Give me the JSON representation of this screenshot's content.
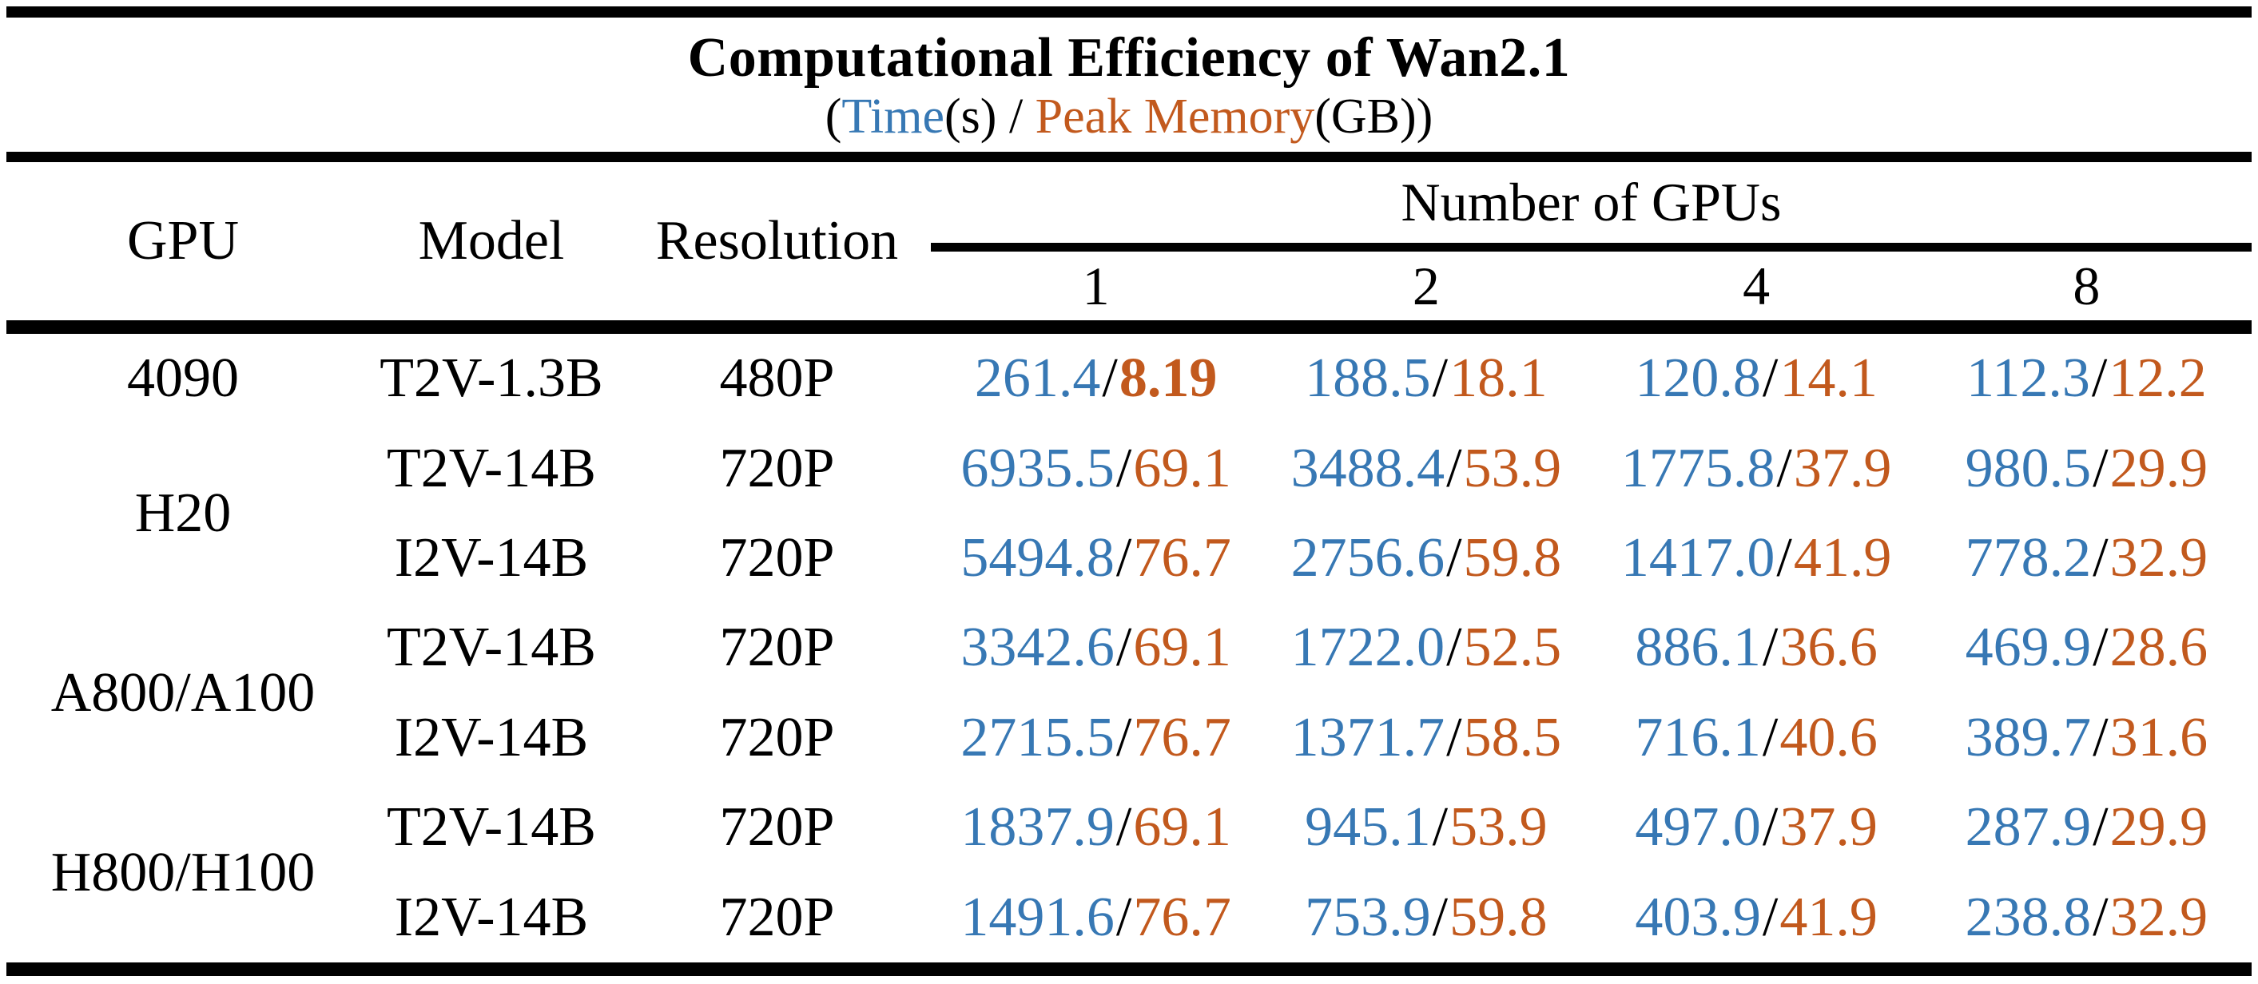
{
  "table": {
    "title": "Computational Efficiency of Wan2.1",
    "subtitle": {
      "prefix": "(",
      "time_label": "Time",
      "time_suffix": "(s)",
      "separator": " / ",
      "memory_label": "Peak Memory",
      "memory_suffix": "(GB))"
    },
    "colors": {
      "time": "#3778B4",
      "memory": "#C2591D"
    },
    "columns": {
      "gpu": "GPU",
      "model": "Model",
      "resolution": "Resolution",
      "gpus_group": "Number of GPUs",
      "gpu_counts": [
        "1",
        "2",
        "4",
        "8"
      ]
    },
    "groups": [
      {
        "gpu": "4090",
        "rows": [
          {
            "model": "T2V-1.3B",
            "resolution": "480P",
            "cells": [
              {
                "time": "261.4",
                "memory": "8.19",
                "memory_bold": true
              },
              {
                "time": "188.5",
                "memory": "18.1"
              },
              {
                "time": "120.8",
                "memory": "14.1"
              },
              {
                "time": "112.3",
                "memory": "12.2"
              }
            ]
          }
        ]
      },
      {
        "gpu": "H20",
        "rows": [
          {
            "model": "T2V-14B",
            "resolution": "720P",
            "cells": [
              {
                "time": "6935.5",
                "memory": "69.1"
              },
              {
                "time": "3488.4",
                "memory": "53.9"
              },
              {
                "time": "1775.8",
                "memory": "37.9"
              },
              {
                "time": "980.5",
                "memory": "29.9"
              }
            ]
          },
          {
            "model": "I2V-14B",
            "resolution": "720P",
            "cells": [
              {
                "time": "5494.8",
                "memory": "76.7"
              },
              {
                "time": "2756.6",
                "memory": "59.8"
              },
              {
                "time": "1417.0",
                "memory": "41.9"
              },
              {
                "time": "778.2",
                "memory": "32.9"
              }
            ]
          }
        ]
      },
      {
        "gpu": "A800/A100",
        "rows": [
          {
            "model": "T2V-14B",
            "resolution": "720P",
            "cells": [
              {
                "time": "3342.6",
                "memory": "69.1"
              },
              {
                "time": "1722.0",
                "memory": "52.5"
              },
              {
                "time": "886.1",
                "memory": "36.6"
              },
              {
                "time": "469.9",
                "memory": "28.6"
              }
            ]
          },
          {
            "model": "I2V-14B",
            "resolution": "720P",
            "cells": [
              {
                "time": "2715.5",
                "memory": "76.7"
              },
              {
                "time": "1371.7",
                "memory": "58.5"
              },
              {
                "time": "716.1",
                "memory": "40.6"
              },
              {
                "time": "389.7",
                "memory": "31.6"
              }
            ]
          }
        ]
      },
      {
        "gpu": "H800/H100",
        "rows": [
          {
            "model": "T2V-14B",
            "resolution": "720P",
            "cells": [
              {
                "time": "1837.9",
                "memory": "69.1"
              },
              {
                "time": "945.1",
                "memory": "53.9"
              },
              {
                "time": "497.0",
                "memory": "37.9"
              },
              {
                "time": "287.9",
                "memory": "29.9"
              }
            ]
          },
          {
            "model": "I2V-14B",
            "resolution": "720P",
            "cells": [
              {
                "time": "1491.6",
                "memory": "76.7"
              },
              {
                "time": "753.9",
                "memory": "59.8"
              },
              {
                "time": "403.9",
                "memory": "41.9"
              },
              {
                "time": "238.8",
                "memory": "32.9"
              }
            ]
          }
        ]
      }
    ]
  },
  "chart_data": {
    "type": "table",
    "title": "Computational Efficiency of Wan2.1",
    "subtitle": "(Time(s) / Peak Memory(GB))",
    "units": {
      "time": "s",
      "peak_memory": "GB"
    },
    "columns": [
      "GPU",
      "Model",
      "Resolution",
      "1 GPU",
      "2 GPUs",
      "4 GPUs",
      "8 GPUs"
    ],
    "rows": [
      {
        "gpu": "4090",
        "model": "T2V-1.3B",
        "resolution": "480P",
        "time": {
          "1": 261.4,
          "2": 188.5,
          "4": 120.8,
          "8": 112.3
        },
        "peak_memory": {
          "1": 8.19,
          "2": 18.1,
          "4": 14.1,
          "8": 12.2
        }
      },
      {
        "gpu": "H20",
        "model": "T2V-14B",
        "resolution": "720P",
        "time": {
          "1": 6935.5,
          "2": 3488.4,
          "4": 1775.8,
          "8": 980.5
        },
        "peak_memory": {
          "1": 69.1,
          "2": 53.9,
          "4": 37.9,
          "8": 29.9
        }
      },
      {
        "gpu": "H20",
        "model": "I2V-14B",
        "resolution": "720P",
        "time": {
          "1": 5494.8,
          "2": 2756.6,
          "4": 1417.0,
          "8": 778.2
        },
        "peak_memory": {
          "1": 76.7,
          "2": 59.8,
          "4": 41.9,
          "8": 32.9
        }
      },
      {
        "gpu": "A800/A100",
        "model": "T2V-14B",
        "resolution": "720P",
        "time": {
          "1": 3342.6,
          "2": 1722.0,
          "4": 886.1,
          "8": 469.9
        },
        "peak_memory": {
          "1": 69.1,
          "2": 52.5,
          "4": 36.6,
          "8": 28.6
        }
      },
      {
        "gpu": "A800/A100",
        "model": "I2V-14B",
        "resolution": "720P",
        "time": {
          "1": 2715.5,
          "2": 1371.7,
          "4": 716.1,
          "8": 389.7
        },
        "peak_memory": {
          "1": 76.7,
          "2": 58.5,
          "4": 40.6,
          "8": 31.6
        }
      },
      {
        "gpu": "H800/H100",
        "model": "T2V-14B",
        "resolution": "720P",
        "time": {
          "1": 1837.9,
          "2": 945.1,
          "4": 497.0,
          "8": 287.9
        },
        "peak_memory": {
          "1": 69.1,
          "2": 53.9,
          "4": 37.9,
          "8": 29.9
        }
      },
      {
        "gpu": "H800/H100",
        "model": "I2V-14B",
        "resolution": "720P",
        "time": {
          "1": 1491.6,
          "2": 753.9,
          "4": 403.9,
          "8": 238.8
        },
        "peak_memory": {
          "1": 76.7,
          "2": 59.8,
          "4": 41.9,
          "8": 32.9
        }
      }
    ],
    "legend": [
      {
        "label": "Time(s)",
        "color": "#3778B4"
      },
      {
        "label": "Peak Memory(GB)",
        "color": "#C2591D"
      }
    ],
    "notes": "Memory value 8.19 (4090, 1 GPU) is shown in bold."
  }
}
